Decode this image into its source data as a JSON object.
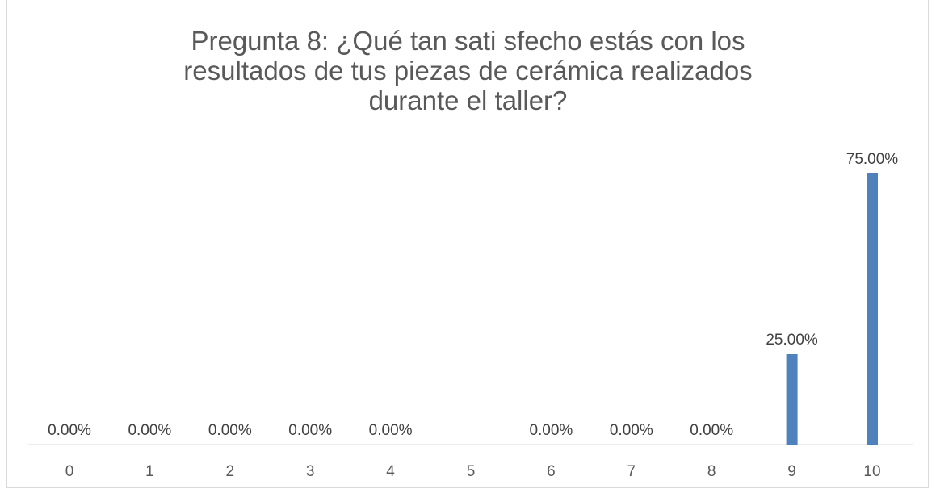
{
  "chart_data": {
    "type": "bar",
    "title_lines": [
      "Pregunta 8: ¿Qué tan sati sfecho estás con los",
      "resultados de tus piezas de cerámica realizados",
      "durante el taller?"
    ],
    "categories": [
      "0",
      "1",
      "2",
      "3",
      "4",
      "5",
      "6",
      "7",
      "8",
      "9",
      "10"
    ],
    "values": [
      0,
      0,
      0,
      0,
      0,
      null,
      0,
      0,
      0,
      25,
      75
    ],
    "data_labels": [
      "0.00%",
      "0.00%",
      "0.00%",
      "0.00%",
      "0.00%",
      "",
      "0.00%",
      "0.00%",
      "0.00%",
      "25.00%",
      "75.00%"
    ],
    "ylim": [
      0,
      75
    ],
    "grid": false,
    "legend": "none",
    "bar_color": "#4f81bd"
  }
}
